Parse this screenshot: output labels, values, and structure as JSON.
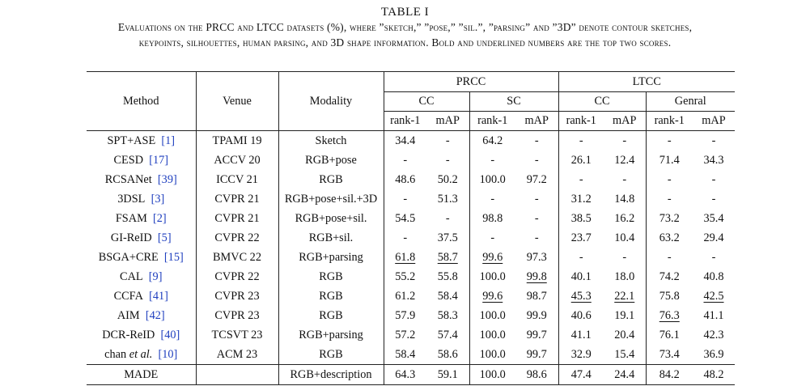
{
  "caption": {
    "title": "TABLE I",
    "line1": "Evaluations on the PRCC and LTCC datasets (%), where ”sketch,” ”pose,” ”sil.”, ”parsing” and ”3D” denote contour sketches,",
    "line2": "keypoints, silhouettes, human parsing, and 3D shape information. Bold and underlined numbers are the top two scores."
  },
  "headers": {
    "method": "Method",
    "venue": "Venue",
    "modality": "Modality",
    "prcc": "PRCC",
    "ltcc": "LTCC",
    "prcc_cc": "CC",
    "prcc_sc": "SC",
    "ltcc_cc": "CC",
    "ltcc_general": "Genral",
    "rank1": "rank-1",
    "map": "mAP"
  },
  "rows": [
    {
      "method": "SPT+ASE",
      "ref": "[1]",
      "venue": "TPAMI 19",
      "modality": "Sketch",
      "vals": [
        "34.4",
        "-",
        "64.2",
        "-",
        "-",
        "-",
        "-",
        "-"
      ]
    },
    {
      "method": "CESD",
      "ref": "[17]",
      "venue": "ACCV 20",
      "modality": "RGB+pose",
      "vals": [
        "-",
        "-",
        "-",
        "-",
        "26.1",
        "12.4",
        "71.4",
        "34.3"
      ]
    },
    {
      "method": "RCSANet",
      "ref": "[39]",
      "venue": "ICCV 21",
      "modality": "RGB",
      "vals": [
        "48.6",
        "50.2",
        "100.0",
        "97.2",
        "-",
        "-",
        "-",
        "-"
      ]
    },
    {
      "method": "3DSL",
      "ref": "[3]",
      "venue": "CVPR 21",
      "modality": "RGB+pose+sil.+3D",
      "vals": [
        "-",
        "51.3",
        "-",
        "-",
        "31.2",
        "14.8",
        "-",
        "-"
      ]
    },
    {
      "method": "FSAM",
      "ref": "[2]",
      "venue": "CVPR 21",
      "modality": "RGB+pose+sil.",
      "vals": [
        "54.5",
        "-",
        "98.8",
        "-",
        "38.5",
        "16.2",
        "73.2",
        "35.4"
      ]
    },
    {
      "method": "GI-ReID",
      "ref": "[5]",
      "venue": "CVPR 22",
      "modality": "RGB+sil.",
      "vals": [
        "-",
        "37.5",
        "-",
        "-",
        "23.7",
        "10.4",
        "63.2",
        "29.4"
      ]
    },
    {
      "method": "BSGA+CRE",
      "ref": "[15]",
      "venue": "BMVC 22",
      "modality": "RGB+parsing",
      "vals": [
        "61.8",
        "58.7",
        "99.6",
        "97.3",
        "-",
        "-",
        "-",
        "-"
      ]
    },
    {
      "method": "CAL",
      "ref": "[9]",
      "venue": "CVPR 22",
      "modality": "RGB",
      "vals": [
        "55.2",
        "55.8",
        "100.0",
        "99.8",
        "40.1",
        "18.0",
        "74.2",
        "40.8"
      ]
    },
    {
      "method": "CCFA",
      "ref": "[41]",
      "venue": "CVPR 23",
      "modality": "RGB",
      "vals": [
        "61.2",
        "58.4",
        "99.6",
        "98.7",
        "45.3",
        "22.1",
        "75.8",
        "42.5"
      ]
    },
    {
      "method": "AIM",
      "ref": "[42]",
      "venue": "CVPR 23",
      "modality": "RGB",
      "vals": [
        "57.9",
        "58.3",
        "100.0",
        "99.9",
        "40.6",
        "19.1",
        "76.3",
        "41.1"
      ]
    },
    {
      "method": "DCR-ReID",
      "ref": "[40]",
      "venue": "TCSVT 23",
      "modality": "RGB+parsing",
      "vals": [
        "57.2",
        "57.4",
        "100.0",
        "99.7",
        "41.1",
        "20.4",
        "76.1",
        "42.3"
      ]
    },
    {
      "method_plain": "chan ",
      "method_ital": "et al.",
      "ref": "[10]",
      "venue": "ACM 23",
      "modality": "RGB",
      "vals": [
        "58.4",
        "58.6",
        "100.0",
        "99.7",
        "32.9",
        "15.4",
        "73.4",
        "36.9"
      ]
    }
  ],
  "final": {
    "method": "MADE",
    "venue": "",
    "modality": "RGB+description",
    "vals": [
      "64.3",
      "59.1",
      "100.0",
      "98.6",
      "47.4",
      "24.4",
      "84.2",
      "48.2"
    ]
  }
}
